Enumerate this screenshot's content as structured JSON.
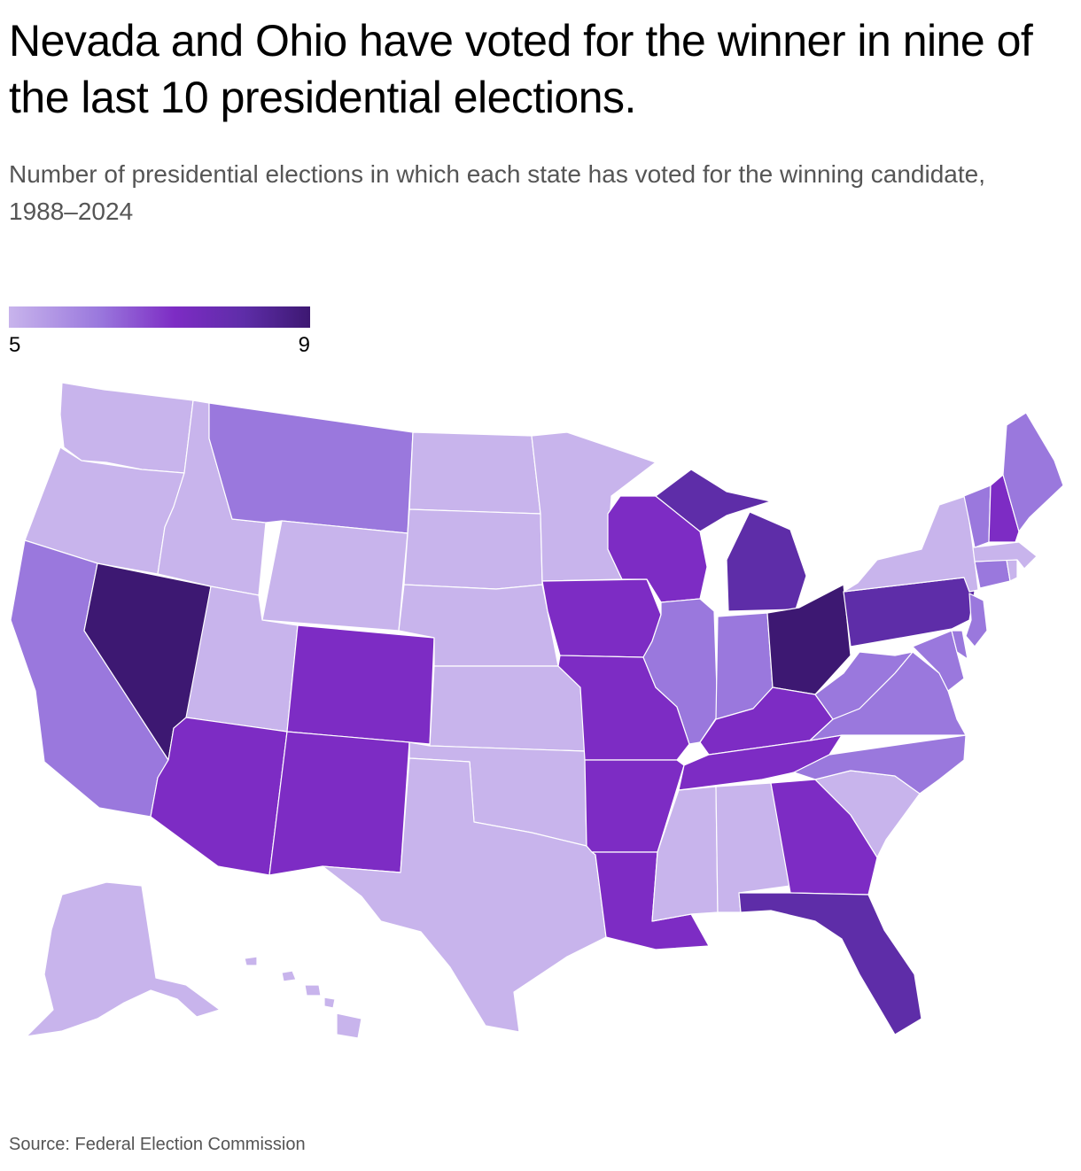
{
  "title": "Nevada and Ohio have voted for the winner in nine of the last 10 presidential elections.",
  "subtitle": "Number of presidential elections in which each state has voted for the winning candidate, 1988–2024",
  "legend": {
    "min_label": "5",
    "max_label": "9"
  },
  "source": "Source: Federal Election Commission",
  "colors": {
    "5": "#c8b4ec",
    "6": "#9a78dd",
    "7": "#7d2cc4",
    "8": "#5e2da8",
    "9": "#3d1872"
  },
  "states": [
    {
      "id": "WA",
      "name": "Washington",
      "value": 5
    },
    {
      "id": "OR",
      "name": "Oregon",
      "value": 5
    },
    {
      "id": "CA",
      "name": "California",
      "value": 6
    },
    {
      "id": "NV",
      "name": "Nevada",
      "value": 9
    },
    {
      "id": "ID",
      "name": "Idaho",
      "value": 5
    },
    {
      "id": "MT",
      "name": "Montana",
      "value": 6
    },
    {
      "id": "WY",
      "name": "Wyoming",
      "value": 5
    },
    {
      "id": "UT",
      "name": "Utah",
      "value": 5
    },
    {
      "id": "AZ",
      "name": "Arizona",
      "value": 7
    },
    {
      "id": "CO",
      "name": "Colorado",
      "value": 7
    },
    {
      "id": "NM",
      "name": "New Mexico",
      "value": 7
    },
    {
      "id": "ND",
      "name": "North Dakota",
      "value": 5
    },
    {
      "id": "SD",
      "name": "South Dakota",
      "value": 5
    },
    {
      "id": "NE",
      "name": "Nebraska",
      "value": 5
    },
    {
      "id": "KS",
      "name": "Kansas",
      "value": 5
    },
    {
      "id": "OK",
      "name": "Oklahoma",
      "value": 5
    },
    {
      "id": "TX",
      "name": "Texas",
      "value": 5
    },
    {
      "id": "MN",
      "name": "Minnesota",
      "value": 5
    },
    {
      "id": "IA",
      "name": "Iowa",
      "value": 7
    },
    {
      "id": "MO",
      "name": "Missouri",
      "value": 7
    },
    {
      "id": "AR",
      "name": "Arkansas",
      "value": 7
    },
    {
      "id": "LA",
      "name": "Louisiana",
      "value": 7
    },
    {
      "id": "WI",
      "name": "Wisconsin",
      "value": 7
    },
    {
      "id": "IL",
      "name": "Illinois",
      "value": 6
    },
    {
      "id": "MI",
      "name": "Michigan",
      "value": 8
    },
    {
      "id": "IN",
      "name": "Indiana",
      "value": 6
    },
    {
      "id": "OH",
      "name": "Ohio",
      "value": 9
    },
    {
      "id": "KY",
      "name": "Kentucky",
      "value": 7
    },
    {
      "id": "TN",
      "name": "Tennessee",
      "value": 7
    },
    {
      "id": "MS",
      "name": "Mississippi",
      "value": 5
    },
    {
      "id": "AL",
      "name": "Alabama",
      "value": 5
    },
    {
      "id": "GA",
      "name": "Georgia",
      "value": 7
    },
    {
      "id": "FL",
      "name": "Florida",
      "value": 8
    },
    {
      "id": "SC",
      "name": "South Carolina",
      "value": 5
    },
    {
      "id": "NC",
      "name": "North Carolina",
      "value": 6
    },
    {
      "id": "VA",
      "name": "Virginia",
      "value": 6
    },
    {
      "id": "WV",
      "name": "West Virginia",
      "value": 6
    },
    {
      "id": "PA",
      "name": "Pennsylvania",
      "value": 8
    },
    {
      "id": "NY",
      "name": "New York",
      "value": 5
    },
    {
      "id": "VT",
      "name": "Vermont",
      "value": 6
    },
    {
      "id": "NH",
      "name": "New Hampshire",
      "value": 7
    },
    {
      "id": "ME",
      "name": "Maine",
      "value": 6
    },
    {
      "id": "MA",
      "name": "Massachusetts",
      "value": 5
    },
    {
      "id": "RI",
      "name": "Rhode Island",
      "value": 5
    },
    {
      "id": "CT",
      "name": "Connecticut",
      "value": 6
    },
    {
      "id": "NJ",
      "name": "New Jersey",
      "value": 6
    },
    {
      "id": "DE",
      "name": "Delaware",
      "value": 6
    },
    {
      "id": "MD",
      "name": "Maryland",
      "value": 6
    },
    {
      "id": "AK",
      "name": "Alaska",
      "value": 5
    },
    {
      "id": "HI",
      "name": "Hawaii",
      "value": 5
    }
  ]
}
